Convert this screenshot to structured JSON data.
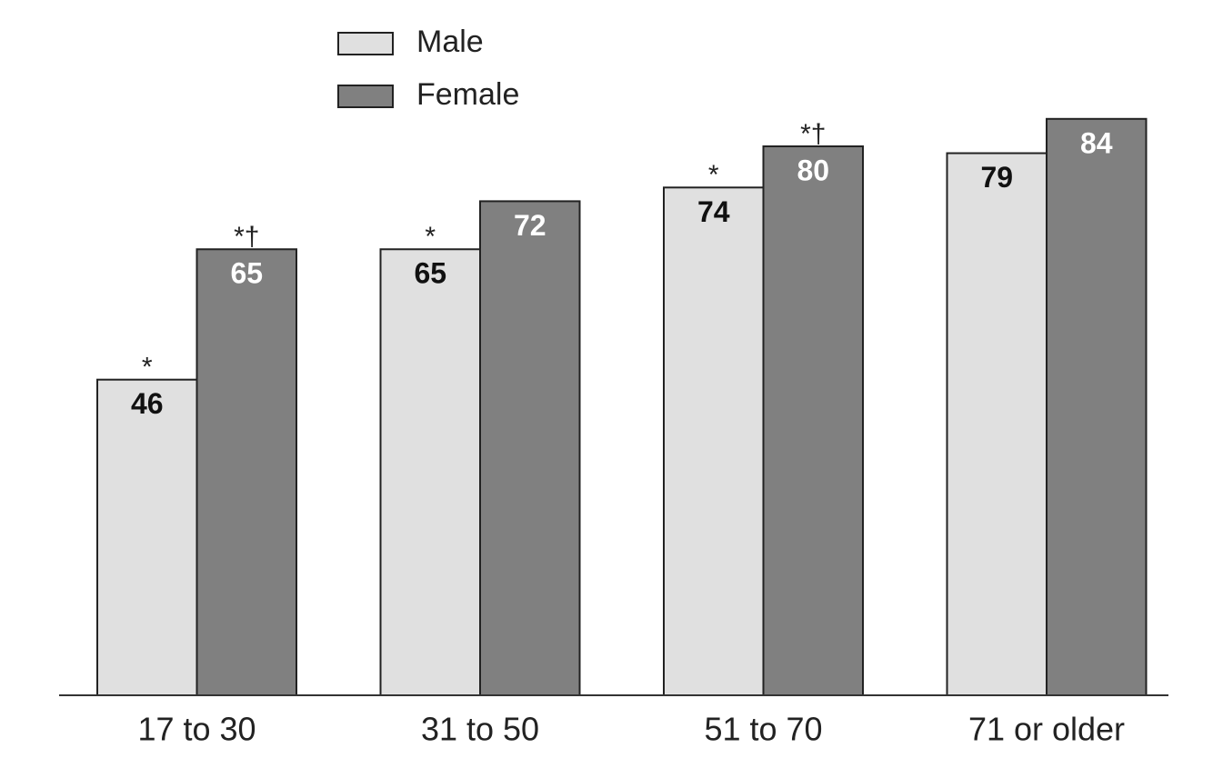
{
  "chart_data": {
    "type": "bar",
    "categories": [
      "17 to 30",
      "31 to 50",
      "51 to 70",
      "71 or older"
    ],
    "series": [
      {
        "name": "Male",
        "color": "#e0e0e0",
        "label_color": "#111111",
        "values": [
          46,
          65,
          74,
          79
        ],
        "annotations": [
          "*",
          "*",
          "*",
          null
        ]
      },
      {
        "name": "Female",
        "color": "#808080",
        "label_color": "#ffffff",
        "values": [
          65,
          72,
          80,
          84
        ],
        "annotations": [
          "*†",
          null,
          "*†",
          null
        ]
      }
    ],
    "ylim": [
      0,
      100
    ],
    "legend": "top-left"
  }
}
